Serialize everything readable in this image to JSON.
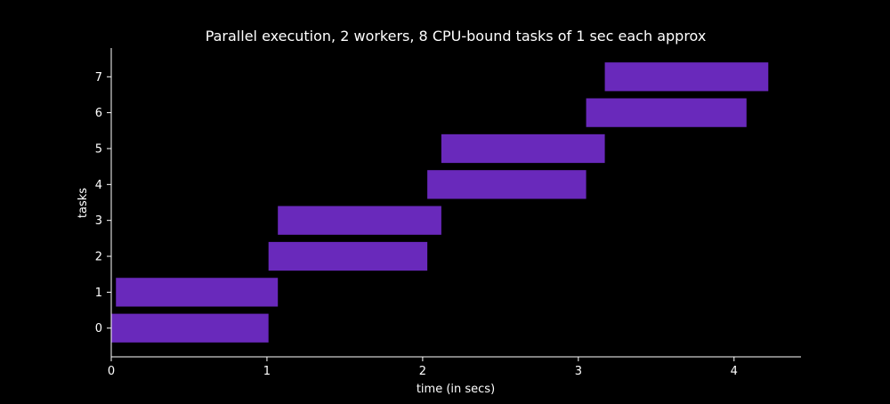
{
  "chart_data": {
    "type": "bar",
    "orientation": "horizontal",
    "title": "Parallel execution, 2 workers, 8 CPU-bound tasks of 1 sec each approx",
    "xlabel": "time (in secs)",
    "ylabel": "tasks",
    "xlim": [
      0,
      4.43
    ],
    "ylim": [
      -0.8,
      7.8
    ],
    "x_ticks": [
      0,
      1,
      2,
      3,
      4
    ],
    "x_tick_labels": [
      "0",
      "1",
      "2",
      "3",
      "4"
    ],
    "y_ticks": [
      0,
      1,
      2,
      3,
      4,
      5,
      6,
      7
    ],
    "y_tick_labels": [
      "0",
      "1",
      "2",
      "3",
      "4",
      "5",
      "6",
      "7"
    ],
    "grid": false,
    "tasks": [
      {
        "task": 0,
        "start": 0.0,
        "end": 1.01
      },
      {
        "task": 1,
        "start": 0.03,
        "end": 1.07
      },
      {
        "task": 2,
        "start": 1.01,
        "end": 2.03
      },
      {
        "task": 3,
        "start": 1.07,
        "end": 2.12
      },
      {
        "task": 4,
        "start": 2.03,
        "end": 3.05
      },
      {
        "task": 5,
        "start": 2.12,
        "end": 3.17
      },
      {
        "task": 6,
        "start": 3.05,
        "end": 4.08
      },
      {
        "task": 7,
        "start": 3.17,
        "end": 4.22
      }
    ],
    "bar_color": "#6929bb",
    "background": "#000000",
    "foreground": "#ffffff"
  }
}
